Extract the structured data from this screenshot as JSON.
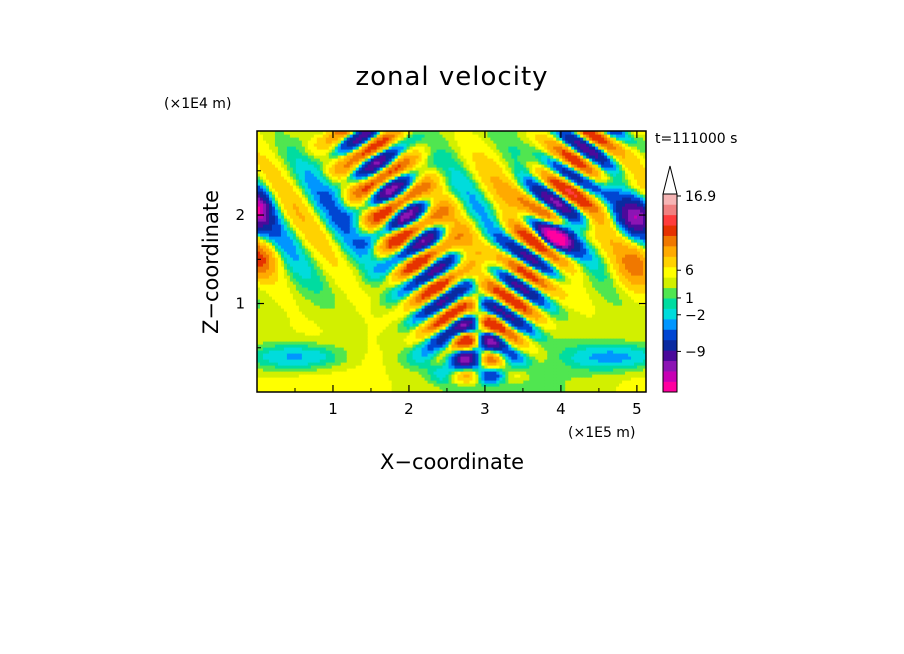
{
  "chart_data": {
    "type": "heatmap",
    "title": "zonal velocity",
    "xlabel": "X−coordinate",
    "ylabel": "Z−coordinate",
    "x_scale_note": "(×1E5 m)",
    "y_scale_note": "(×1E4 m)",
    "time_label": "t=111000 s",
    "xlim": [
      0,
      5.12
    ],
    "ylim": [
      0,
      2.95
    ],
    "x_ticks": [
      1,
      2,
      3,
      4,
      5
    ],
    "y_ticks": [
      1,
      2
    ],
    "x_tick_labels": [
      "1",
      "2",
      "3",
      "4",
      "5"
    ],
    "y_tick_labels": [
      "1",
      "2"
    ],
    "colorbar": {
      "extend": "max",
      "colors": [
        "#ff00a0",
        "#c800b4",
        "#8c14b4",
        "#4b0a9b",
        "#0a2aa0",
        "#0046d2",
        "#0096ff",
        "#00dcdc",
        "#00dca0",
        "#50e650",
        "#d2f000",
        "#ffff00",
        "#ffd200",
        "#ffaa00",
        "#f07800",
        "#e63200",
        "#ff3c3c",
        "#f08080",
        "#f6b4b4"
      ],
      "tick_labels": [
        "16.9",
        "6",
        "1",
        "−2",
        "−9"
      ]
    },
    "field_note": "Shaded contours of zonal velocity. Values range roughly from about −12 to 16.9; strongest alternating bands lie in a V-shaped region centred near x = 2.5–3.5 (×1E5 m) tilting outward with height, negative cores (blue) near x = 0, z = 2 and x = 3.5–4, z = 1.8."
  }
}
